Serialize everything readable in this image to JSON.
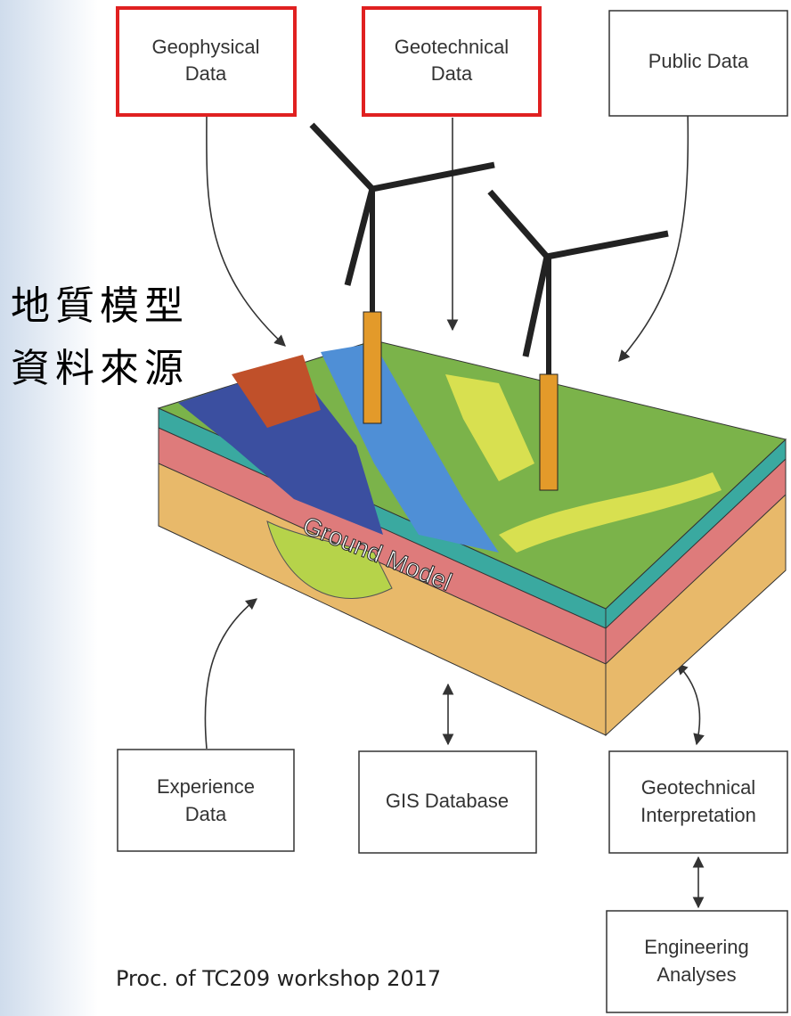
{
  "title_cjk": {
    "lines": [
      "地質模型",
      "資料來源"
    ]
  },
  "nodes": [
    {
      "lines": [
        "Geophysical",
        "Data"
      ]
    },
    {
      "lines": [
        "Geotechnical",
        "Data"
      ]
    },
    {
      "lines": [
        "Public Data"
      ]
    },
    {
      "lines": [
        "Experience",
        "Data"
      ]
    },
    {
      "lines": [
        "GIS Database"
      ]
    },
    {
      "lines": [
        "Geotechnical",
        "Interpretation"
      ]
    },
    {
      "lines": [
        "Engineering",
        "Analyses"
      ]
    }
  ],
  "model_label": "Ground Model",
  "caption": "Proc. of TC209 workshop 2017"
}
